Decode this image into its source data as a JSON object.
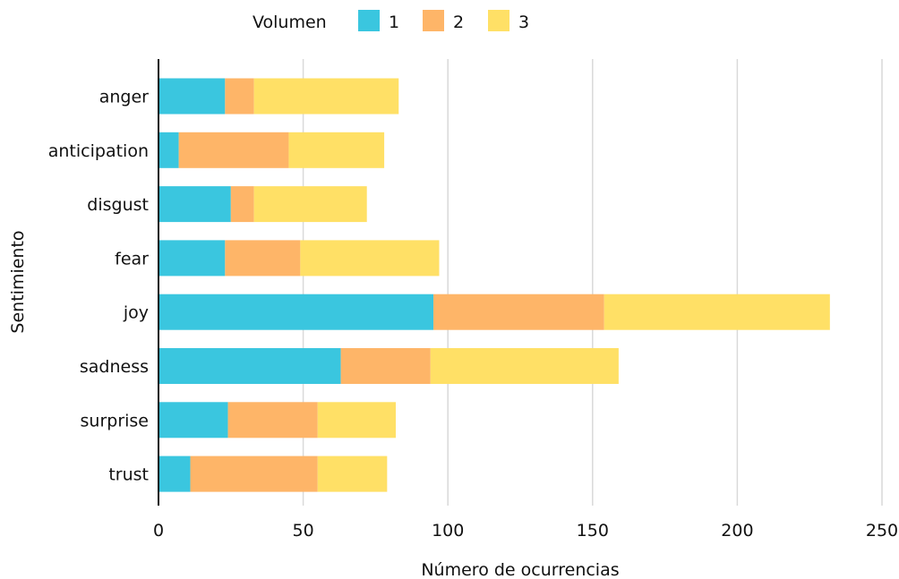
{
  "chart_data": {
    "type": "bar",
    "orientation": "horizontal",
    "stacked": true,
    "categories": [
      "anger",
      "anticipation",
      "disgust",
      "fear",
      "joy",
      "sadness",
      "surprise",
      "trust"
    ],
    "series": [
      {
        "name": "1",
        "color": "#3ac6df",
        "values": [
          23,
          7,
          25,
          23,
          95,
          63,
          24,
          11
        ]
      },
      {
        "name": "2",
        "color": "#feb568",
        "values": [
          10,
          38,
          8,
          26,
          59,
          31,
          31,
          44
        ]
      },
      {
        "name": "3",
        "color": "#ffe066",
        "values": [
          50,
          33,
          39,
          48,
          78,
          65,
          27,
          24
        ]
      }
    ],
    "title": "",
    "legend_title": "Volumen",
    "legend_position": "top",
    "xlabel": "Número de ocurrencias",
    "ylabel": "Sentimiento",
    "xlim": [
      0,
      250
    ],
    "xticks": [
      "0",
      "50",
      "100",
      "150",
      "200",
      "250"
    ],
    "grid": "vertical"
  }
}
